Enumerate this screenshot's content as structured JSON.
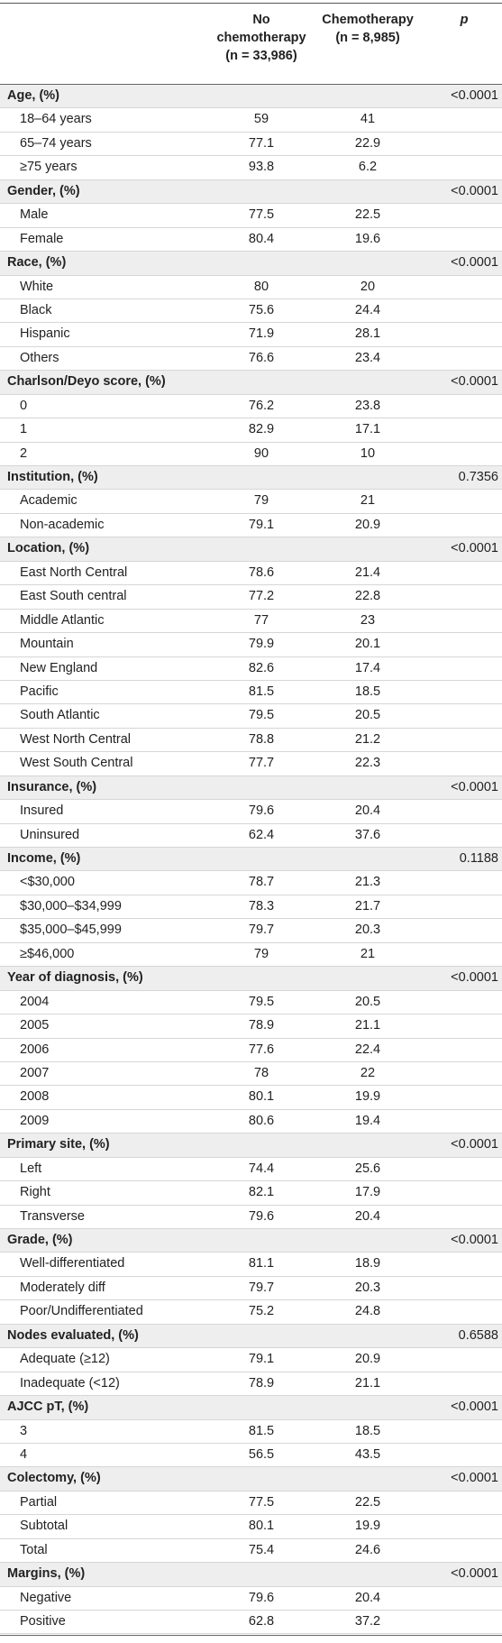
{
  "header": {
    "col1_line1": "No",
    "col1_line2": "chemotherapy",
    "col1_n": "(n = 33,986)",
    "col2_line1": "Chemotherapy",
    "col2_n": "(n = 8,985)",
    "col3": "p"
  },
  "rows": [
    {
      "type": "section",
      "label": "Age, (%)",
      "p": "<0.0001"
    },
    {
      "type": "sub",
      "label": "18–64 years",
      "v1": "59",
      "v2": "41"
    },
    {
      "type": "sub",
      "label": "65–74 years",
      "v1": "77.1",
      "v2": "22.9"
    },
    {
      "type": "sub",
      "label": "≥75 years",
      "v1": "93.8",
      "v2": "6.2"
    },
    {
      "type": "section",
      "label": "Gender, (%)",
      "p": "<0.0001"
    },
    {
      "type": "sub",
      "label": "Male",
      "v1": "77.5",
      "v2": "22.5"
    },
    {
      "type": "sub",
      "label": "Female",
      "v1": "80.4",
      "v2": "19.6"
    },
    {
      "type": "section",
      "label": "Race, (%)",
      "p": "<0.0001"
    },
    {
      "type": "sub",
      "label": "White",
      "v1": "80",
      "v2": "20"
    },
    {
      "type": "sub",
      "label": "Black",
      "v1": "75.6",
      "v2": "24.4"
    },
    {
      "type": "sub",
      "label": "Hispanic",
      "v1": "71.9",
      "v2": "28.1"
    },
    {
      "type": "sub",
      "label": "Others",
      "v1": "76.6",
      "v2": "23.4"
    },
    {
      "type": "section",
      "label": "Charlson/Deyo score, (%)",
      "p": "<0.0001"
    },
    {
      "type": "sub",
      "label": "0",
      "v1": "76.2",
      "v2": "23.8"
    },
    {
      "type": "sub",
      "label": "1",
      "v1": "82.9",
      "v2": "17.1"
    },
    {
      "type": "sub",
      "label": "2",
      "v1": "90",
      "v2": "10"
    },
    {
      "type": "section",
      "label": "Institution, (%)",
      "p": "0.7356"
    },
    {
      "type": "sub",
      "label": "Academic",
      "v1": "79",
      "v2": "21"
    },
    {
      "type": "sub",
      "label": "Non-academic",
      "v1": "79.1",
      "v2": "20.9"
    },
    {
      "type": "section",
      "label": "Location, (%)",
      "p": "<0.0001"
    },
    {
      "type": "sub",
      "label": "East North Central",
      "v1": "78.6",
      "v2": "21.4"
    },
    {
      "type": "sub",
      "label": "East South central",
      "v1": "77.2",
      "v2": "22.8"
    },
    {
      "type": "sub",
      "label": "Middle Atlantic",
      "v1": "77",
      "v2": "23"
    },
    {
      "type": "sub",
      "label": "Mountain",
      "v1": "79.9",
      "v2": "20.1"
    },
    {
      "type": "sub",
      "label": "New England",
      "v1": "82.6",
      "v2": "17.4"
    },
    {
      "type": "sub",
      "label": "Pacific",
      "v1": "81.5",
      "v2": "18.5"
    },
    {
      "type": "sub",
      "label": "South Atlantic",
      "v1": "79.5",
      "v2": "20.5"
    },
    {
      "type": "sub",
      "label": "West North Central",
      "v1": "78.8",
      "v2": "21.2"
    },
    {
      "type": "sub",
      "label": "West South Central",
      "v1": "77.7",
      "v2": "22.3"
    },
    {
      "type": "section",
      "label": "Insurance, (%)",
      "p": "<0.0001"
    },
    {
      "type": "sub",
      "label": "Insured",
      "v1": "79.6",
      "v2": "20.4"
    },
    {
      "type": "sub",
      "label": "Uninsured",
      "v1": "62.4",
      "v2": "37.6"
    },
    {
      "type": "section",
      "label": "Income, (%)",
      "p": "0.1188"
    },
    {
      "type": "sub",
      "label": "<$30,000",
      "v1": "78.7",
      "v2": "21.3"
    },
    {
      "type": "sub",
      "label": "$30,000–$34,999",
      "v1": "78.3",
      "v2": "21.7"
    },
    {
      "type": "sub",
      "label": "$35,000–$45,999",
      "v1": "79.7",
      "v2": "20.3"
    },
    {
      "type": "sub",
      "label": "≥$46,000",
      "v1": "79",
      "v2": "21"
    },
    {
      "type": "section",
      "label": "Year of diagnosis, (%)",
      "p": "<0.0001"
    },
    {
      "type": "sub",
      "label": "2004",
      "v1": "79.5",
      "v2": "20.5"
    },
    {
      "type": "sub",
      "label": "2005",
      "v1": "78.9",
      "v2": "21.1"
    },
    {
      "type": "sub",
      "label": "2006",
      "v1": "77.6",
      "v2": "22.4"
    },
    {
      "type": "sub",
      "label": "2007",
      "v1": "78",
      "v2": "22"
    },
    {
      "type": "sub",
      "label": "2008",
      "v1": "80.1",
      "v2": "19.9"
    },
    {
      "type": "sub",
      "label": "2009",
      "v1": "80.6",
      "v2": "19.4"
    },
    {
      "type": "section",
      "label": "Primary site, (%)",
      "p": "<0.0001"
    },
    {
      "type": "sub",
      "label": "Left",
      "v1": "74.4",
      "v2": "25.6"
    },
    {
      "type": "sub",
      "label": "Right",
      "v1": "82.1",
      "v2": "17.9"
    },
    {
      "type": "sub",
      "label": "Transverse",
      "v1": "79.6",
      "v2": "20.4"
    },
    {
      "type": "section",
      "label": "Grade, (%)",
      "p": "<0.0001"
    },
    {
      "type": "sub",
      "label": "Well-differentiated",
      "v1": "81.1",
      "v2": "18.9"
    },
    {
      "type": "sub",
      "label": "Moderately diff",
      "v1": "79.7",
      "v2": "20.3"
    },
    {
      "type": "sub",
      "label": "Poor/Undifferentiated",
      "v1": "75.2",
      "v2": "24.8"
    },
    {
      "type": "section",
      "label": "Nodes evaluated, (%)",
      "p": "0.6588"
    },
    {
      "type": "sub",
      "label": "Adequate (≥12)",
      "v1": "79.1",
      "v2": "20.9"
    },
    {
      "type": "sub",
      "label": "Inadequate (<12)",
      "v1": "78.9",
      "v2": "21.1"
    },
    {
      "type": "section",
      "label": "AJCC pT, (%)",
      "p": "<0.0001"
    },
    {
      "type": "sub",
      "label": "3",
      "v1": "81.5",
      "v2": "18.5"
    },
    {
      "type": "sub",
      "label": "4",
      "v1": "56.5",
      "v2": "43.5"
    },
    {
      "type": "section",
      "label": "Colectomy, (%)",
      "p": "<0.0001"
    },
    {
      "type": "sub",
      "label": "Partial",
      "v1": "77.5",
      "v2": "22.5"
    },
    {
      "type": "sub",
      "label": "Subtotal",
      "v1": "80.1",
      "v2": "19.9"
    },
    {
      "type": "sub",
      "label": "Total",
      "v1": "75.4",
      "v2": "24.6"
    },
    {
      "type": "section",
      "label": "Margins, (%)",
      "p": "<0.0001"
    },
    {
      "type": "sub",
      "label": "Negative",
      "v1": "79.6",
      "v2": "20.4"
    },
    {
      "type": "sub",
      "label": "Positive",
      "v1": "62.8",
      "v2": "37.2"
    }
  ]
}
